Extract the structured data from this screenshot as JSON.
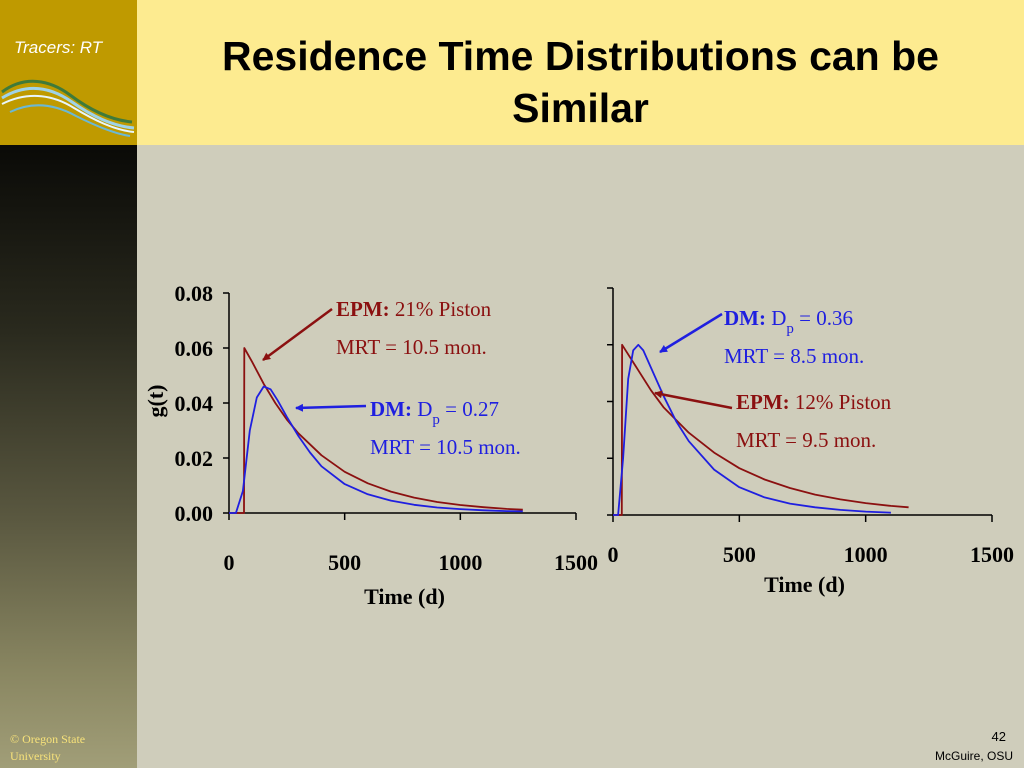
{
  "corner": {
    "label": "Tracers: RT"
  },
  "slide": {
    "title_line1": "Residence Time Distributions can be",
    "title_line2": "Similar",
    "page_number": "42",
    "author": "McGuire, OSU"
  },
  "footer": {
    "copyright_line1": "© Oregon State",
    "copyright_line2": "University"
  },
  "colors": {
    "dm": "#1f1fe0",
    "epm": "#8b1010",
    "corner": "#bf9a00",
    "title_band": "#fdeb90",
    "background": "#cfcdbb"
  },
  "chart_data": [
    {
      "type": "line",
      "xlabel": "Time (d)",
      "ylabel": "g(t)",
      "xlim": [
        0,
        1500
      ],
      "ylim": [
        0,
        0.08
      ],
      "x_ticks": [
        "0",
        "500",
        "1000",
        "1500"
      ],
      "y_ticks": [
        "0.00",
        "0.02",
        "0.04",
        "0.06",
        "0.08"
      ],
      "series": [
        {
          "name": "EPM",
          "color": "#8b1010",
          "x": [
            0,
            65,
            66,
            100,
            150,
            200,
            250,
            300,
            400,
            500,
            600,
            700,
            800,
            900,
            1000,
            1100,
            1200,
            1270
          ],
          "y": [
            0,
            0,
            0.06,
            0.055,
            0.047,
            0.04,
            0.034,
            0.029,
            0.021,
            0.015,
            0.0108,
            0.0078,
            0.0056,
            0.004,
            0.0029,
            0.0021,
            0.0015,
            0.0012
          ]
        },
        {
          "name": "DM",
          "color": "#1f1fe0",
          "x": [
            0,
            30,
            60,
            90,
            120,
            150,
            180,
            210,
            250,
            300,
            350,
            400,
            500,
            600,
            700,
            800,
            900,
            1000,
            1100,
            1200,
            1270
          ],
          "y": [
            0,
            0.0,
            0.008,
            0.03,
            0.042,
            0.046,
            0.045,
            0.041,
            0.035,
            0.028,
            0.022,
            0.017,
            0.0105,
            0.0068,
            0.0045,
            0.003,
            0.002,
            0.0014,
            0.001,
            0.0007,
            0.0006
          ]
        }
      ],
      "annotations": [
        {
          "label": "EPM:",
          "text": " 21% Piston",
          "line2": "MRT = 10.5 mon."
        },
        {
          "label": "DM:",
          "text": " D",
          "sub": "p",
          "text_after": " = 0.27",
          "line2": "MRT = 10.5 mon."
        }
      ]
    },
    {
      "type": "line",
      "xlabel": "Time (d)",
      "xlim": [
        0,
        1500
      ],
      "ylim": [
        0,
        0.08
      ],
      "x_ticks": [
        "0",
        "500",
        "1000",
        "1500"
      ],
      "series": [
        {
          "name": "EPM",
          "color": "#8b1010",
          "x": [
            0,
            35,
            36,
            100,
            150,
            200,
            300,
            400,
            500,
            600,
            700,
            800,
            900,
            1000,
            1100,
            1170
          ],
          "y": [
            0,
            0,
            0.06,
            0.051,
            0.044,
            0.038,
            0.029,
            0.022,
            0.0165,
            0.0125,
            0.0095,
            0.0072,
            0.0055,
            0.0042,
            0.0032,
            0.0027
          ]
        },
        {
          "name": "DM",
          "color": "#1f1fe0",
          "x": [
            0,
            20,
            40,
            60,
            80,
            100,
            120,
            150,
            200,
            250,
            300,
            400,
            500,
            600,
            700,
            800,
            900,
            1000,
            1100
          ],
          "y": [
            0,
            0.0,
            0.02,
            0.048,
            0.058,
            0.06,
            0.058,
            0.052,
            0.042,
            0.033,
            0.026,
            0.016,
            0.0098,
            0.0062,
            0.004,
            0.0027,
            0.0018,
            0.0012,
            0.0008
          ]
        }
      ],
      "annotations": [
        {
          "label": "DM:",
          "text": " D",
          "sub": "p",
          "text_after": " = 0.36",
          "line2": "MRT = 8.5 mon."
        },
        {
          "label": "EPM:",
          "text": " 12% Piston",
          "line2": "MRT = 9.5 mon."
        }
      ]
    }
  ]
}
